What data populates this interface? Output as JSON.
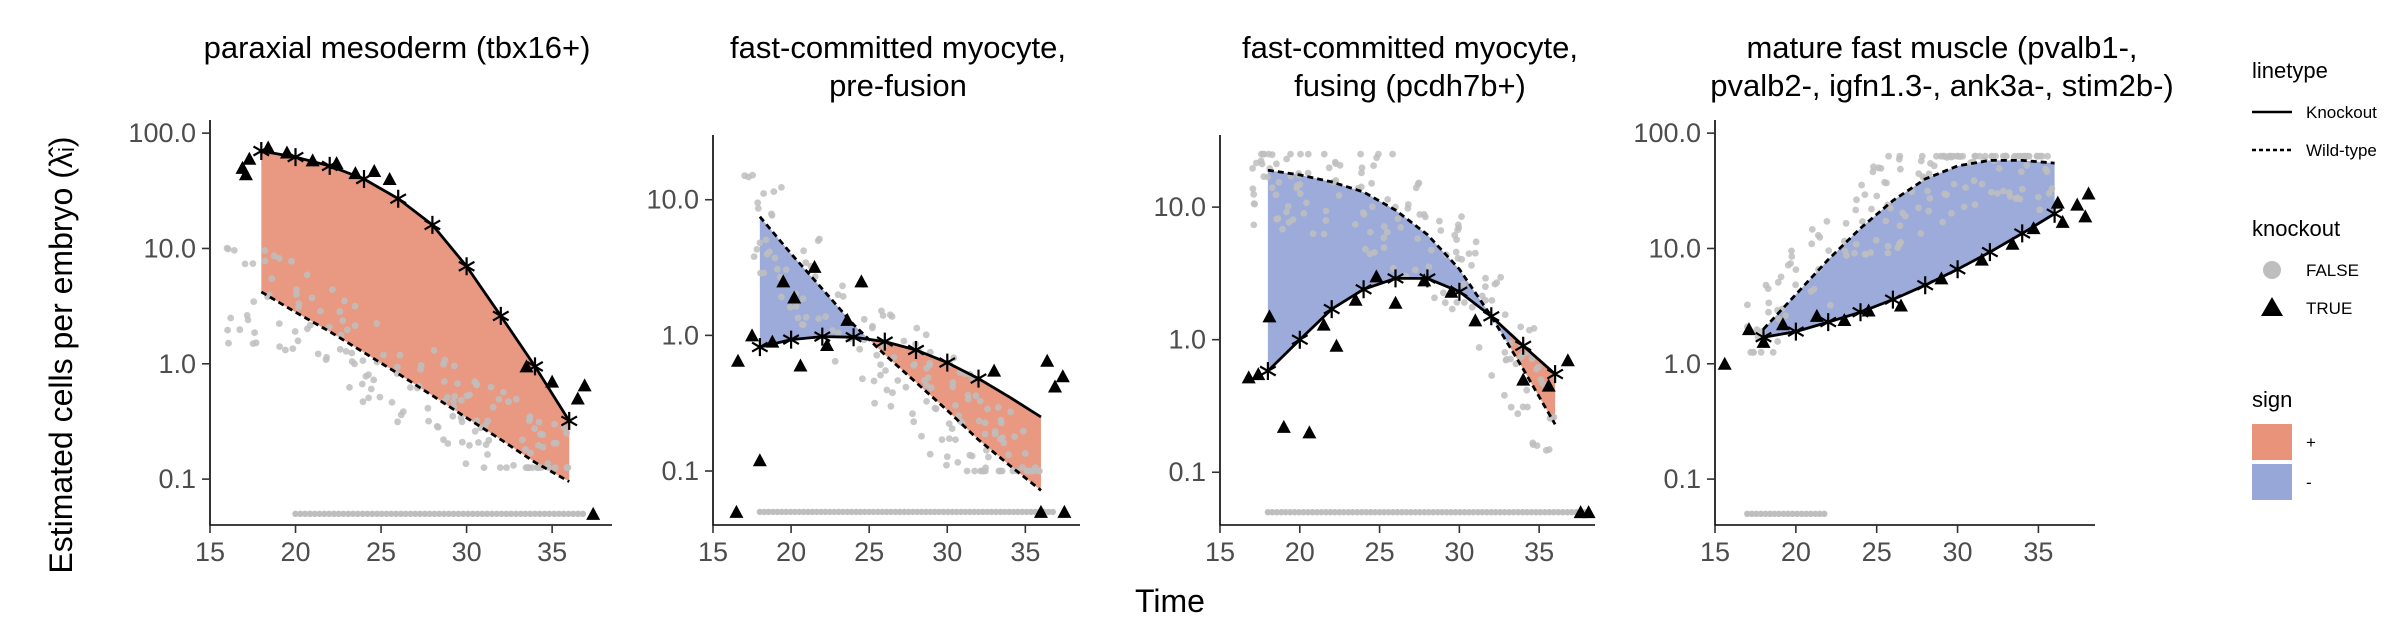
{
  "figure": {
    "xlabel": "Time",
    "ylabel": "Estimated cells per embryo (λ̂ᵢ)"
  },
  "colors": {
    "plus_fill": "#E8937A",
    "minus_fill": "#97A7D8",
    "wt_points": "#BEBEBE",
    "ko_points": "#000000"
  },
  "legend": {
    "linetype": {
      "title": "linetype",
      "items": [
        "Knockout",
        "Wild-type"
      ]
    },
    "knockout": {
      "title": "knockout",
      "items": [
        "FALSE",
        "TRUE"
      ]
    },
    "sign": {
      "title": "sign",
      "items": [
        "+",
        "-"
      ]
    }
  },
  "chart_data": [
    {
      "type": "line",
      "title_lines": [
        "paraxial mesoderm (tbx16+)"
      ],
      "x_scale": "linear",
      "y_scale": "log10",
      "xlim": [
        15,
        38.5
      ],
      "ylim": [
        0.04,
        130
      ],
      "x_ticks": [
        15,
        20,
        25,
        30,
        35
      ],
      "y_ticks": [
        100,
        10,
        1,
        0.1
      ],
      "y_tick_labels": [
        "100.0",
        "10.0",
        "1.0",
        "0.1"
      ],
      "series": [
        {
          "name": "Knockout",
          "x": [
            18,
            20,
            22,
            24,
            26,
            28,
            30,
            32,
            34,
            36
          ],
          "y": [
            70,
            62,
            52,
            40,
            27,
            16,
            7,
            2.6,
            0.95,
            0.32
          ]
        },
        {
          "name": "Wild-type",
          "x": [
            18,
            20,
            22,
            24,
            26,
            28,
            30,
            32,
            34,
            36
          ],
          "y": [
            4.2,
            2.8,
            1.9,
            1.25,
            0.82,
            0.53,
            0.34,
            0.22,
            0.14,
            0.095
          ]
        }
      ],
      "shading": [
        {
          "sign": "+",
          "x_from": 18,
          "x_to": 36
        }
      ],
      "ko_markers_x": [
        18,
        20,
        22,
        24,
        26,
        28,
        30,
        32,
        34,
        36
      ],
      "wt_point_range": {
        "x": [
          16,
          36
        ],
        "y_log": [
          -0.9,
          1.1
        ]
      },
      "wt_zero_x": [
        20,
        37
      ],
      "ko_points": [
        [
          16.9,
          50
        ],
        [
          17.1,
          44
        ],
        [
          17.3,
          60
        ],
        [
          18.4,
          75
        ],
        [
          19.5,
          68
        ],
        [
          21,
          58
        ],
        [
          22.4,
          55
        ],
        [
          23.5,
          45
        ],
        [
          24.6,
          47
        ],
        [
          25.5,
          40
        ],
        [
          33.5,
          0.95
        ],
        [
          35,
          0.7
        ],
        [
          36.5,
          0.5
        ],
        [
          36.9,
          0.65
        ],
        [
          37.4,
          0.05
        ]
      ]
    },
    {
      "type": "line",
      "title_lines": [
        "fast-committed myocyte,",
        "pre-fusion"
      ],
      "x_scale": "linear",
      "y_scale": "log10",
      "xlim": [
        15,
        38.5
      ],
      "ylim": [
        0.04,
        30
      ],
      "x_ticks": [
        15,
        20,
        25,
        30,
        35
      ],
      "y_ticks": [
        10,
        1,
        0.1
      ],
      "y_tick_labels": [
        "10.0",
        "1.0",
        "0.1"
      ],
      "series": [
        {
          "name": "Knockout",
          "x": [
            18,
            20,
            22,
            24,
            26,
            28,
            30,
            32,
            34,
            36
          ],
          "y": [
            0.82,
            0.93,
            0.98,
            0.97,
            0.9,
            0.78,
            0.63,
            0.48,
            0.35,
            0.25
          ]
        },
        {
          "name": "Wild-type",
          "x": [
            18,
            20,
            22,
            24,
            26,
            28,
            30,
            32,
            34,
            36
          ],
          "y": [
            7.5,
            4.0,
            2.2,
            1.2,
            0.72,
            0.45,
            0.28,
            0.17,
            0.11,
            0.072
          ]
        }
      ],
      "shading": [
        {
          "sign": "-",
          "x_from": 18,
          "x_to": 25.2
        },
        {
          "sign": "+",
          "x_from": 25.2,
          "x_to": 36
        }
      ],
      "ko_markers_x": [
        18,
        20,
        22,
        24,
        26,
        28,
        30,
        32
      ],
      "wt_point_range": {
        "x": [
          17,
          36
        ],
        "y_log": [
          -1.0,
          1.3
        ]
      },
      "wt_zero_x": [
        18,
        37
      ],
      "ko_points": [
        [
          16.6,
          0.65
        ],
        [
          17.5,
          1.0
        ],
        [
          18,
          0.12
        ],
        [
          18.8,
          0.9
        ],
        [
          19.5,
          2.5
        ],
        [
          20.2,
          1.9
        ],
        [
          20.6,
          0.6
        ],
        [
          21.5,
          3.2
        ],
        [
          22.3,
          0.85
        ],
        [
          23.6,
          1.3
        ],
        [
          24.5,
          2.5
        ],
        [
          33,
          0.55
        ],
        [
          36.4,
          0.65
        ],
        [
          36.9,
          0.42
        ],
        [
          37.4,
          0.5
        ],
        [
          16.5,
          0.05
        ],
        [
          36,
          0.05
        ],
        [
          37.5,
          0.05
        ]
      ]
    },
    {
      "type": "line",
      "title_lines": [
        "fast-committed myocyte,",
        "fusing  (pcdh7b+)"
      ],
      "x_scale": "linear",
      "y_scale": "log10",
      "xlim": [
        15,
        38.5
      ],
      "ylim": [
        0.04,
        35
      ],
      "x_ticks": [
        15,
        20,
        25,
        30,
        35
      ],
      "y_ticks": [
        10,
        1,
        0.1
      ],
      "y_tick_labels": [
        "10.0",
        "1.0",
        "0.1"
      ],
      "series": [
        {
          "name": "Knockout",
          "x": [
            18,
            20,
            22,
            24,
            26,
            28,
            30,
            32,
            34,
            36
          ],
          "y": [
            0.58,
            1.0,
            1.7,
            2.4,
            2.9,
            2.9,
            2.3,
            1.5,
            0.9,
            0.55
          ]
        },
        {
          "name": "Wild-type",
          "x": [
            18,
            20,
            22,
            24,
            26,
            28,
            30,
            32,
            34,
            36
          ],
          "y": [
            19,
            17.5,
            15.5,
            13,
            9.5,
            6.2,
            3.4,
            1.5,
            0.6,
            0.23
          ]
        }
      ],
      "shading": [
        {
          "sign": "-",
          "x_from": 18,
          "x_to": 33.2
        },
        {
          "sign": "+",
          "x_from": 33.2,
          "x_to": 36
        }
      ],
      "ko_markers_x": [
        18,
        20,
        22,
        24,
        26,
        28,
        30,
        32,
        34,
        36
      ],
      "wt_point_range": {
        "x": [
          17,
          36
        ],
        "y_log": [
          -0.9,
          1.4
        ]
      },
      "wt_zero_x": [
        18,
        38
      ],
      "ko_points": [
        [
          16.8,
          0.52
        ],
        [
          17.4,
          0.55
        ],
        [
          18.1,
          1.5
        ],
        [
          19,
          0.22
        ],
        [
          20.6,
          0.2
        ],
        [
          21.5,
          1.3
        ],
        [
          22.3,
          0.9
        ],
        [
          23.5,
          2.0
        ],
        [
          24.8,
          3.0
        ],
        [
          26,
          1.9
        ],
        [
          27.8,
          2.8
        ],
        [
          29.5,
          2.3
        ],
        [
          31,
          1.4
        ],
        [
          34,
          0.5
        ],
        [
          35.6,
          0.45
        ],
        [
          36.8,
          0.7
        ],
        [
          37.6,
          0.05
        ],
        [
          38.1,
          0.05
        ]
      ]
    },
    {
      "type": "line",
      "title_lines": [
        "mature fast muscle (pvalb1-,",
        "pvalb2-, igfn1.3-, ank3a-, stim2b-)"
      ],
      "x_scale": "linear",
      "y_scale": "log10",
      "xlim": [
        15,
        38.5
      ],
      "ylim": [
        0.04,
        130
      ],
      "x_ticks": [
        15,
        20,
        25,
        30,
        35
      ],
      "y_ticks": [
        100,
        10,
        1,
        0.1
      ],
      "y_tick_labels": [
        "100.0",
        "10.0",
        "1.0",
        "0.1"
      ],
      "series": [
        {
          "name": "Knockout",
          "x": [
            18,
            20,
            22,
            24,
            26,
            28,
            30,
            32,
            34,
            36
          ],
          "y": [
            1.7,
            1.9,
            2.3,
            2.8,
            3.6,
            4.8,
            6.6,
            9.3,
            13.5,
            20
          ]
        },
        {
          "name": "Wild-type",
          "x": [
            18,
            20,
            22,
            24,
            26,
            28,
            30,
            32,
            34,
            36
          ],
          "y": [
            2.0,
            4.0,
            8.0,
            15,
            26,
            40,
            52,
            58,
            58,
            55
          ]
        }
      ],
      "shading": [
        {
          "sign": "-",
          "x_from": 18,
          "x_to": 36
        }
      ],
      "ko_markers_x": [
        18,
        20,
        22,
        24,
        26,
        28,
        30,
        32,
        34,
        36
      ],
      "wt_point_range": {
        "x": [
          17,
          36
        ],
        "y_log": [
          0.1,
          1.8
        ]
      },
      "wt_zero_x": [
        17,
        22
      ],
      "ko_points": [
        [
          15.6,
          1.0
        ],
        [
          17.1,
          2.0
        ],
        [
          18,
          1.55
        ],
        [
          19.2,
          2.2
        ],
        [
          21.3,
          2.6
        ],
        [
          23,
          2.4
        ],
        [
          24.5,
          2.9
        ],
        [
          26.5,
          3.2
        ],
        [
          29,
          5.5
        ],
        [
          31.5,
          8
        ],
        [
          33.4,
          11
        ],
        [
          34.7,
          15
        ],
        [
          36.2,
          25
        ],
        [
          36.5,
          17
        ],
        [
          37.4,
          24
        ],
        [
          37.9,
          19
        ],
        [
          38.1,
          30
        ]
      ]
    }
  ]
}
